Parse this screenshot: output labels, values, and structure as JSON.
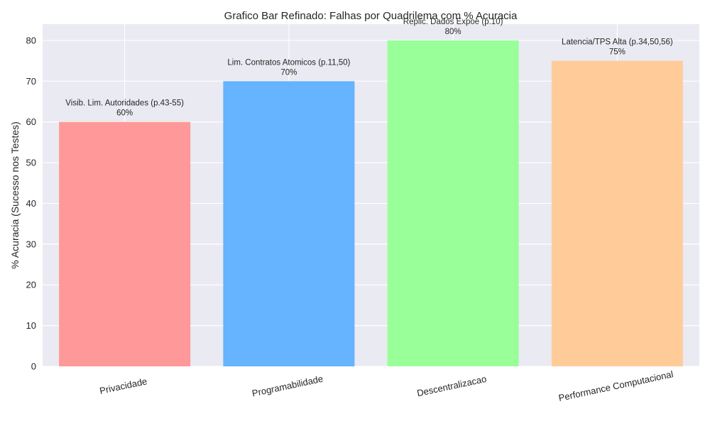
{
  "chart_data": {
    "type": "bar",
    "title": "Grafico Bar Refinado: Falhas por Quadrilema com % Acuracia",
    "xlabel": "",
    "ylabel": "% Acuracia (Sucesso nos Testes)",
    "ylim": [
      0,
      84
    ],
    "yticks": [
      0,
      10,
      20,
      30,
      40,
      50,
      60,
      70,
      80
    ],
    "grid": true,
    "categories": [
      "Privacidade",
      "Programabilidade",
      "Descentralizacao",
      "Performance Computacional"
    ],
    "values": [
      60,
      70,
      80,
      75
    ],
    "colors": [
      "#ff9999",
      "#66b3ff",
      "#99ff99",
      "#ffcc99"
    ],
    "annotations": [
      {
        "label": "Visib. Lim. Autoridades (p.43-55)",
        "value_text": "60%"
      },
      {
        "label": "Lim. Contratos Atomicos (p.11,50)",
        "value_text": "70%"
      },
      {
        "label": "Replic. Dados Expoe (p.10)",
        "value_text": "80%"
      },
      {
        "label": "Latencia/TPS Alta (p.34,50,56)",
        "value_text": "75%"
      }
    ]
  }
}
